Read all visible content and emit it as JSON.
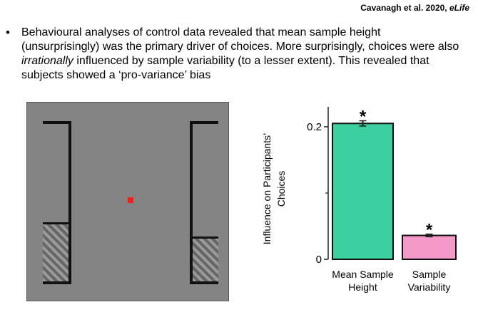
{
  "citation": {
    "authors": "Cavanagh et al. 2020, ",
    "journal": "eLife"
  },
  "bullet": {
    "symbol": "•",
    "text_before": "Behavioural analyses of control data revealed that mean sample height (unsurprisingly) was the primary driver of choices. More surprisingly, choices were also ",
    "emphasis": "irrationally",
    "text_after": " influenced by sample variability (to a lesser extent). This revealed that subjects showed a ‘pro-variance’ bias"
  },
  "stimulus": {
    "left_bar_level": 0.36,
    "right_bar_level": 0.27,
    "fixation_color": "#ff1a1a"
  },
  "chart_data": {
    "type": "bar",
    "categories": [
      "Mean Sample\nHeight",
      "Sample\nVariability"
    ],
    "values": [
      0.205,
      0.036
    ],
    "errors": [
      0.004,
      0.002
    ],
    "significance": [
      "*",
      "*"
    ],
    "colors": [
      "#3ecfa0",
      "#f49ac8"
    ],
    "ylabel_line1": "Influence on Participants’",
    "ylabel_line2": "Choices",
    "ylim": [
      0,
      0.23
    ],
    "yticks": [
      0,
      0.2
    ],
    "yticklabels": [
      "0",
      "0.2"
    ]
  }
}
